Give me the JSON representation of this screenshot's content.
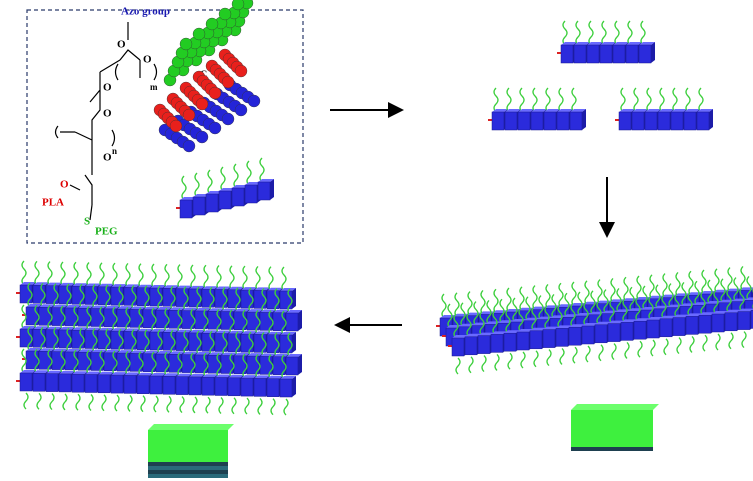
{
  "inset": {
    "labels": [
      "Azo group",
      "O",
      "O",
      "m",
      "O",
      "O",
      "n",
      "O",
      "O",
      "PLA",
      "S",
      "PEG"
    ]
  }
}
